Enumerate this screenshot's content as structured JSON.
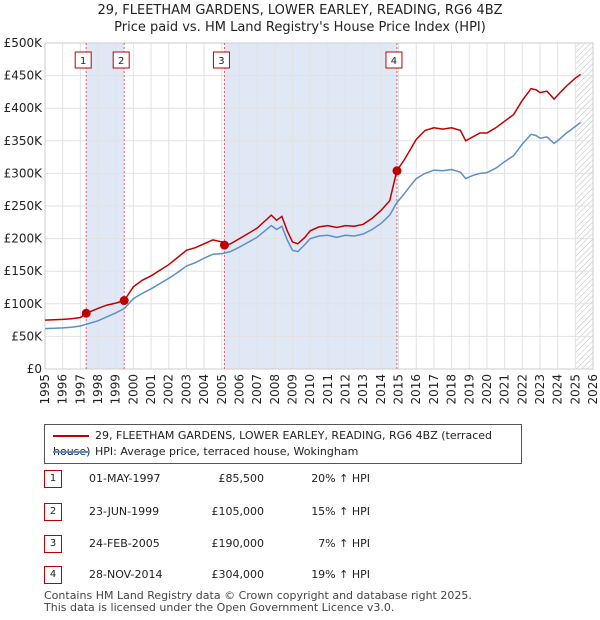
{
  "chart_data": {
    "type": "line",
    "title": "29, FLEETHAM GARDENS, LOWER EARLEY, READING, RG6 4BZ",
    "subtitle": "Price paid vs. HM Land Registry's House Price Index (HPI)",
    "xlabel": "",
    "ylabel": "",
    "xlim": [
      1995,
      2026
    ],
    "ylim": [
      0,
      500000
    ],
    "x_ticks": [
      "1995",
      "1996",
      "1997",
      "1998",
      "1999",
      "2000",
      "2001",
      "2002",
      "2003",
      "2004",
      "2005",
      "2006",
      "2007",
      "2008",
      "2009",
      "2010",
      "2011",
      "2012",
      "2013",
      "2014",
      "2015",
      "2016",
      "2017",
      "2018",
      "2019",
      "2020",
      "2021",
      "2022",
      "2023",
      "2024",
      "2025",
      "2026"
    ],
    "y_ticks": [
      {
        "value": 0,
        "label": "£0"
      },
      {
        "value": 50000,
        "label": "£50K"
      },
      {
        "value": 100000,
        "label": "£100K"
      },
      {
        "value": 150000,
        "label": "£150K"
      },
      {
        "value": 200000,
        "label": "£200K"
      },
      {
        "value": 250000,
        "label": "£250K"
      },
      {
        "value": 300000,
        "label": "£300K"
      },
      {
        "value": 350000,
        "label": "£350K"
      },
      {
        "value": 400000,
        "label": "£400K"
      },
      {
        "value": 450000,
        "label": "£450K"
      },
      {
        "value": 500000,
        "label": "£500K"
      }
    ],
    "grid": true,
    "series": [
      {
        "name": "29, FLEETHAM GARDENS, LOWER EARLEY, READING, RG6 4BZ (terraced house)",
        "color": "#c00000",
        "points": [
          [
            1995,
            75000
          ],
          [
            1996,
            76000
          ],
          [
            1996.5,
            77000
          ],
          [
            1997,
            79000
          ],
          [
            1997.33,
            85500
          ],
          [
            1998,
            93000
          ],
          [
            1998.5,
            98000
          ],
          [
            1999,
            101000
          ],
          [
            1999.48,
            105000
          ],
          [
            2000,
            126000
          ],
          [
            2000.5,
            136000
          ],
          [
            2001,
            143000
          ],
          [
            2002,
            160000
          ],
          [
            2002.5,
            171000
          ],
          [
            2003,
            182000
          ],
          [
            2003.5,
            186000
          ],
          [
            2004,
            192000
          ],
          [
            2004.5,
            198000
          ],
          [
            2005,
            195000
          ],
          [
            2005.15,
            190000
          ],
          [
            2005.5,
            192000
          ],
          [
            2006,
            200000
          ],
          [
            2007,
            216000
          ],
          [
            2007.8,
            236000
          ],
          [
            2008.1,
            228000
          ],
          [
            2008.4,
            234000
          ],
          [
            2008.7,
            212000
          ],
          [
            2009,
            195000
          ],
          [
            2009.3,
            192000
          ],
          [
            2009.7,
            202000
          ],
          [
            2010,
            212000
          ],
          [
            2010.5,
            218000
          ],
          [
            2011,
            220000
          ],
          [
            2011.5,
            217000
          ],
          [
            2012,
            220000
          ],
          [
            2012.5,
            219000
          ],
          [
            2013,
            222000
          ],
          [
            2013.5,
            231000
          ],
          [
            2014,
            243000
          ],
          [
            2014.5,
            258000
          ],
          [
            2014.9,
            304000
          ],
          [
            2015.3,
            320000
          ],
          [
            2015.7,
            338000
          ],
          [
            2016,
            352000
          ],
          [
            2016.5,
            366000
          ],
          [
            2017,
            370000
          ],
          [
            2017.5,
            368000
          ],
          [
            2018,
            370000
          ],
          [
            2018.5,
            366000
          ],
          [
            2018.8,
            350000
          ],
          [
            2019.2,
            356000
          ],
          [
            2019.6,
            362000
          ],
          [
            2020,
            362000
          ],
          [
            2020.5,
            370000
          ],
          [
            2021,
            380000
          ],
          [
            2021.5,
            390000
          ],
          [
            2022,
            412000
          ],
          [
            2022.5,
            430000
          ],
          [
            2022.8,
            428000
          ],
          [
            2023,
            424000
          ],
          [
            2023.4,
            426000
          ],
          [
            2023.8,
            414000
          ],
          [
            2024,
            420000
          ],
          [
            2024.5,
            434000
          ],
          [
            2025,
            446000
          ],
          [
            2025.3,
            452000
          ]
        ]
      },
      {
        "name": "HPI: Average price, terraced house, Wokingham",
        "color": "#5b8fc9",
        "points": [
          [
            1995,
            62000
          ],
          [
            1996,
            63000
          ],
          [
            1996.5,
            64000
          ],
          [
            1997,
            66000
          ],
          [
            1998,
            74000
          ],
          [
            1998.5,
            80000
          ],
          [
            1999,
            86000
          ],
          [
            1999.5,
            93000
          ],
          [
            2000,
            108000
          ],
          [
            2000.5,
            116000
          ],
          [
            2001,
            123000
          ],
          [
            2002,
            139000
          ],
          [
            2002.5,
            148000
          ],
          [
            2003,
            158000
          ],
          [
            2003.5,
            163000
          ],
          [
            2004,
            170000
          ],
          [
            2004.5,
            176000
          ],
          [
            2005,
            177000
          ],
          [
            2005.5,
            180000
          ],
          [
            2006,
            187000
          ],
          [
            2007,
            202000
          ],
          [
            2007.8,
            220000
          ],
          [
            2008.1,
            214000
          ],
          [
            2008.4,
            219000
          ],
          [
            2008.7,
            198000
          ],
          [
            2009,
            182000
          ],
          [
            2009.3,
            180000
          ],
          [
            2009.7,
            191000
          ],
          [
            2010,
            200000
          ],
          [
            2010.5,
            204000
          ],
          [
            2011,
            205000
          ],
          [
            2011.5,
            202000
          ],
          [
            2012,
            205000
          ],
          [
            2012.5,
            204000
          ],
          [
            2013,
            207000
          ],
          [
            2013.5,
            214000
          ],
          [
            2014,
            223000
          ],
          [
            2014.5,
            236000
          ],
          [
            2014.9,
            255000
          ],
          [
            2015.3,
            268000
          ],
          [
            2015.7,
            282000
          ],
          [
            2016,
            292000
          ],
          [
            2016.5,
            300000
          ],
          [
            2017,
            305000
          ],
          [
            2017.5,
            304000
          ],
          [
            2018,
            306000
          ],
          [
            2018.5,
            302000
          ],
          [
            2018.8,
            292000
          ],
          [
            2019.2,
            297000
          ],
          [
            2019.6,
            300000
          ],
          [
            2020,
            301000
          ],
          [
            2020.5,
            308000
          ],
          [
            2021,
            318000
          ],
          [
            2021.5,
            327000
          ],
          [
            2022,
            345000
          ],
          [
            2022.5,
            360000
          ],
          [
            2022.8,
            358000
          ],
          [
            2023,
            354000
          ],
          [
            2023.4,
            356000
          ],
          [
            2023.8,
            346000
          ],
          [
            2024,
            350000
          ],
          [
            2024.5,
            362000
          ],
          [
            2025,
            372000
          ],
          [
            2025.3,
            378000
          ]
        ]
      }
    ],
    "sale_points": [
      {
        "label": "1",
        "x": 1997.33,
        "y": 85500
      },
      {
        "label": "2",
        "x": 1999.48,
        "y": 105000
      },
      {
        "label": "3",
        "x": 2005.15,
        "y": 190000
      },
      {
        "label": "4",
        "x": 2014.91,
        "y": 304000
      }
    ],
    "hatch_from": 2025.0
  },
  "legend": {
    "property_label": "29, FLEETHAM GARDENS, LOWER EARLEY, READING, RG6 4BZ (terraced house)",
    "hpi_label": "HPI: Average price, terraced house, Wokingham"
  },
  "sales": [
    {
      "num": "1",
      "date": "01-MAY-1997",
      "price": "£85,500",
      "hpi": "20% ↑ HPI"
    },
    {
      "num": "2",
      "date": "23-JUN-1999",
      "price": "£105,000",
      "hpi": "15% ↑ HPI"
    },
    {
      "num": "3",
      "date": "24-FEB-2005",
      "price": "£190,000",
      "hpi": "7% ↑ HPI"
    },
    {
      "num": "4",
      "date": "28-NOV-2014",
      "price": "£304,000",
      "hpi": "19% ↑ HPI"
    }
  ],
  "footer": {
    "line1": "Contains HM Land Registry data © Crown copyright and database right 2025.",
    "line2": "This data is licensed under the Open Government Licence v3.0."
  }
}
